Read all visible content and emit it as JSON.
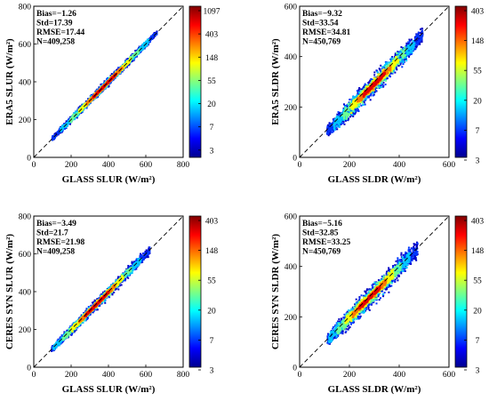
{
  "colormap": [
    "#00008f",
    "#0000ff",
    "#0080ff",
    "#00ffff",
    "#80ff80",
    "#ffff00",
    "#ff8000",
    "#ff0000",
    "#800000"
  ],
  "chart_data": [
    {
      "type": "heatmap",
      "xlabel": "GLASS SLUR (W/m²)",
      "ylabel": "ERA5 SLUR (W/m²)",
      "xlim": [
        0,
        800
      ],
      "ylim": [
        0,
        800
      ],
      "xticks": [
        0,
        200,
        400,
        600,
        800
      ],
      "yticks": [
        0,
        200,
        400,
        600,
        800
      ],
      "stats": [
        "Bias=−1.26",
        "Std=17.39",
        "RMSE=17.44",
        "N=409,258"
      ],
      "colorbar_ticks": [
        "1097",
        "403",
        "148",
        "55",
        "20",
        "7",
        "3"
      ],
      "one_to_one_line": true,
      "density": {
        "x_range": [
          95,
          660
        ],
        "peak": [
          380,
          380
        ],
        "slope": 1.0,
        "intercept": 0,
        "spread": 16,
        "bias_y": 0
      }
    },
    {
      "type": "heatmap",
      "xlabel": "GLASS SLDR (W/m²)",
      "ylabel": "ERA5 SLDR (W/m²)",
      "xlim": [
        0,
        600
      ],
      "ylim": [
        0,
        600
      ],
      "xticks": [
        0,
        200,
        400,
        600
      ],
      "yticks": [
        0,
        200,
        400,
        600
      ],
      "stats": [
        "Bias=−9.32",
        "Std=33.54",
        "RMSE=34.81",
        "N=450,769"
      ],
      "colorbar_ticks": [
        "403",
        "148",
        "55",
        "20",
        "7",
        "3"
      ],
      "one_to_one_line": true,
      "density": {
        "x_range": [
          110,
          500
        ],
        "peak": [
          300,
          290
        ],
        "slope": 1.0,
        "intercept": 0,
        "spread": 33,
        "bias_y": -9
      }
    },
    {
      "type": "heatmap",
      "xlabel": "GLASS SLUR (W/m²)",
      "ylabel": "CERES SYN SLUR (W/m²)",
      "xlim": [
        0,
        800
      ],
      "ylim": [
        0,
        800
      ],
      "xticks": [
        0,
        200,
        400,
        600,
        800
      ],
      "yticks": [
        0,
        200,
        400,
        600,
        800
      ],
      "stats": [
        "Bias=−3.49",
        "Std=21.7",
        "RMSE=21.98",
        "N=409,258"
      ],
      "colorbar_ticks": [
        "403",
        "148",
        "55",
        "20",
        "7",
        "3"
      ],
      "one_to_one_line": true,
      "density": {
        "x_range": [
          95,
          660
        ],
        "peak": [
          340,
          336
        ],
        "slope": 1.0,
        "intercept": 0,
        "spread": 22,
        "bias_y": -3
      }
    },
    {
      "type": "heatmap",
      "xlabel": "GLASS SLDR (W/m²)",
      "ylabel": "CERES SYN SLDR (W/m²)",
      "xlim": [
        0,
        600
      ],
      "ylim": [
        0,
        600
      ],
      "xticks": [
        0,
        200,
        400,
        600
      ],
      "yticks": [
        0,
        200,
        400,
        600
      ],
      "stats": [
        "Bias=−5.16",
        "Std=32.85",
        "RMSE=33.25",
        "N=450,769"
      ],
      "colorbar_ticks": [
        "403",
        "148",
        "55",
        "20",
        "7",
        "3"
      ],
      "one_to_one_line": true,
      "density": {
        "x_range": [
          110,
          500
        ],
        "peak": [
          280,
          275
        ],
        "slope": 1.0,
        "intercept": 0,
        "spread": 32,
        "bias_y": -5
      }
    }
  ]
}
